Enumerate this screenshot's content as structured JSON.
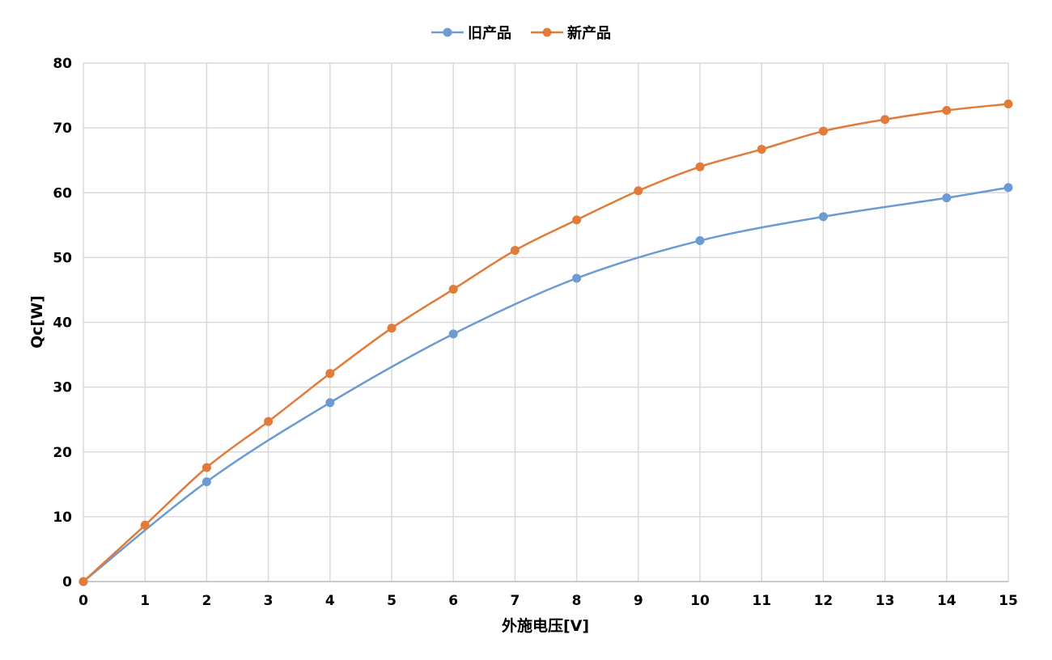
{
  "chart_data": {
    "type": "line",
    "title": "",
    "xlabel": "外施电压[V]",
    "ylabel": "Qc[W]",
    "xlim": [
      0,
      15
    ],
    "ylim": [
      0,
      80
    ],
    "xticks": [
      0,
      1,
      2,
      3,
      4,
      5,
      6,
      7,
      8,
      9,
      10,
      11,
      12,
      13,
      14,
      15
    ],
    "yticks": [
      0,
      10,
      20,
      30,
      40,
      50,
      60,
      70,
      80
    ],
    "grid": true,
    "legend_position": "top-center",
    "series": [
      {
        "name": "旧产品",
        "color": "#6b9bd2",
        "x": [
          0,
          2,
          4,
          6,
          8,
          10,
          12,
          14,
          15
        ],
        "values": [
          0,
          15.4,
          27.6,
          38.2,
          46.8,
          52.6,
          56.3,
          59.2,
          60.8
        ]
      },
      {
        "name": "新产品",
        "color": "#e07b39",
        "x": [
          0,
          1,
          2,
          3,
          4,
          5,
          6,
          7,
          8,
          9,
          10,
          11,
          12,
          13,
          14,
          15
        ],
        "values": [
          0,
          8.7,
          17.6,
          24.7,
          32.1,
          39.1,
          45.1,
          51.1,
          55.8,
          60.3,
          64.0,
          66.7,
          69.5,
          71.3,
          72.7,
          73.7
        ]
      }
    ]
  }
}
